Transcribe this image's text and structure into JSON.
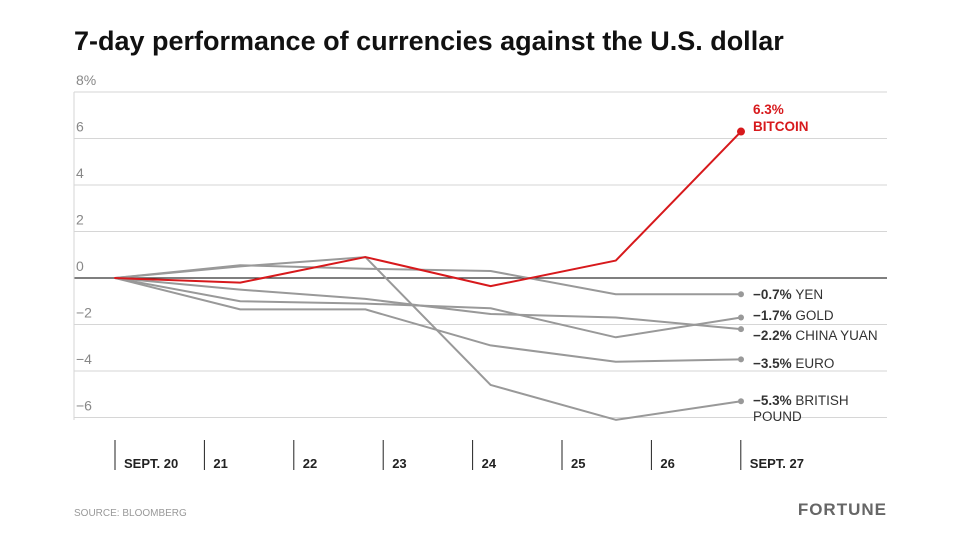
{
  "chart_data": {
    "type": "line",
    "title": "7-day performance of currencies against the U.S. dollar",
    "xlabel": "",
    "ylabel": "",
    "x_tick_labels": [
      "SEPT. 20",
      "21",
      "22",
      "23",
      "24",
      "25",
      "26",
      "SEPT. 27"
    ],
    "y_tick_labels": [
      "8%",
      "6",
      "4",
      "2",
      "0",
      "−2",
      "−4",
      "−6"
    ],
    "y_ticks": [
      8,
      6,
      4,
      2,
      0,
      -2,
      -4,
      -6
    ],
    "ylim": [
      -6.5,
      8
    ],
    "grid": true,
    "series": [
      {
        "name": "YEN",
        "value_label": "−0.7%",
        "color": "#999999",
        "x": [
          0,
          1.4,
          2.8,
          4.2,
          5.6,
          7.0
        ],
        "y": [
          0,
          0.55,
          0.4,
          0.3,
          -0.7,
          -0.7
        ]
      },
      {
        "name": "GOLD",
        "value_label": "−1.7%",
        "color": "#999999",
        "x": [
          0,
          1.4,
          2.8,
          4.2,
          5.6,
          7.0
        ],
        "y": [
          0,
          -1.0,
          -1.1,
          -1.3,
          -2.55,
          -1.7
        ]
      },
      {
        "name": "CHINA YUAN",
        "value_label": "−2.2%",
        "color": "#999999",
        "x": [
          0,
          1.4,
          2.8,
          4.2,
          5.6,
          7.0
        ],
        "y": [
          0,
          -0.5,
          -0.9,
          -1.55,
          -1.7,
          -2.2
        ]
      },
      {
        "name": "EURO",
        "value_label": "−3.5%",
        "color": "#999999",
        "x": [
          0,
          1.4,
          2.8,
          4.2,
          5.6,
          7.0
        ],
        "y": [
          0,
          -1.35,
          -1.35,
          -2.9,
          -3.6,
          -3.5
        ]
      },
      {
        "name": "BRITISH POUND",
        "name_lines": [
          "BRITISH",
          "POUND"
        ],
        "value_label": "−5.3%",
        "color": "#999999",
        "x": [
          0,
          1.4,
          2.8,
          4.2,
          5.6,
          7.0
        ],
        "y": [
          0,
          0.5,
          0.9,
          -4.6,
          -6.1,
          -5.3
        ]
      },
      {
        "name": "BITCOIN",
        "value_label": "6.3%",
        "color": "#d7191c",
        "x": [
          0,
          1.4,
          2.8,
          4.2,
          5.6,
          7.0
        ],
        "y": [
          0,
          -0.2,
          0.9,
          -0.35,
          0.75,
          6.3
        ]
      }
    ]
  },
  "source": "SOURCE: BLOOMBERG",
  "brand": "FORTUNE"
}
